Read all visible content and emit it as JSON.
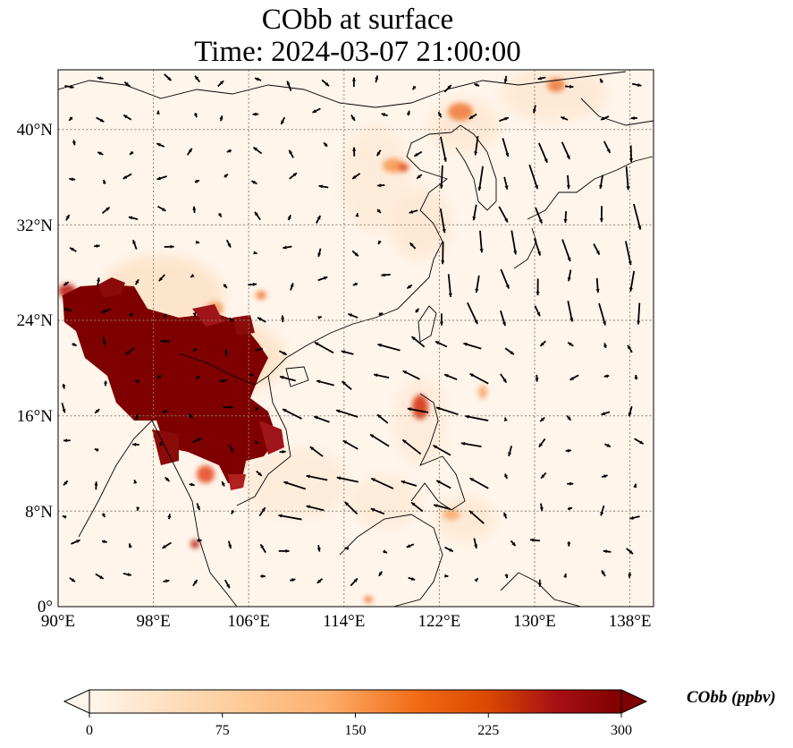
{
  "title": "CObb at surface",
  "subtitle": "Time: 2024-03-07 21:00:00",
  "x_ticks": [
    "90°E",
    "98°E",
    "106°E",
    "114°E",
    "122°E",
    "130°E",
    "138°E"
  ],
  "y_ticks": [
    "40°N",
    "32°N",
    "24°N",
    "16°N",
    "8°N",
    "0°"
  ],
  "colorbar": {
    "label": "CObb (ppbv)",
    "ticks": [
      "0",
      "75",
      "150",
      "225",
      "300"
    ],
    "colors": [
      "#fff5eb",
      "#fdd0a2",
      "#fdae6b",
      "#f16913",
      "#d94801",
      "#a50f15",
      "#7f0000"
    ]
  },
  "chart_data": {
    "type": "heatmap",
    "variable": "CObb",
    "units": "ppbv",
    "level": "surface",
    "time": "2024-03-07 21:00:00",
    "lon_range": [
      90,
      140
    ],
    "lat_range": [
      0,
      45
    ],
    "value_range": [
      0,
      300
    ],
    "grid_lines": true,
    "hotspots": [
      {
        "lon": 101,
        "lat": 21,
        "value": 300
      },
      {
        "lon": 95,
        "lat": 24,
        "value": 300
      },
      {
        "lon": 103,
        "lat": 14,
        "value": 280
      },
      {
        "lon": 120.5,
        "lat": 16,
        "value": 180
      },
      {
        "lon": 118,
        "lat": 37,
        "value": 120
      },
      {
        "lon": 123,
        "lat": 41,
        "value": 140
      },
      {
        "lon": 131,
        "lat": 43,
        "value": 120
      },
      {
        "lon": 102,
        "lat": 5,
        "value": 150
      }
    ]
  }
}
